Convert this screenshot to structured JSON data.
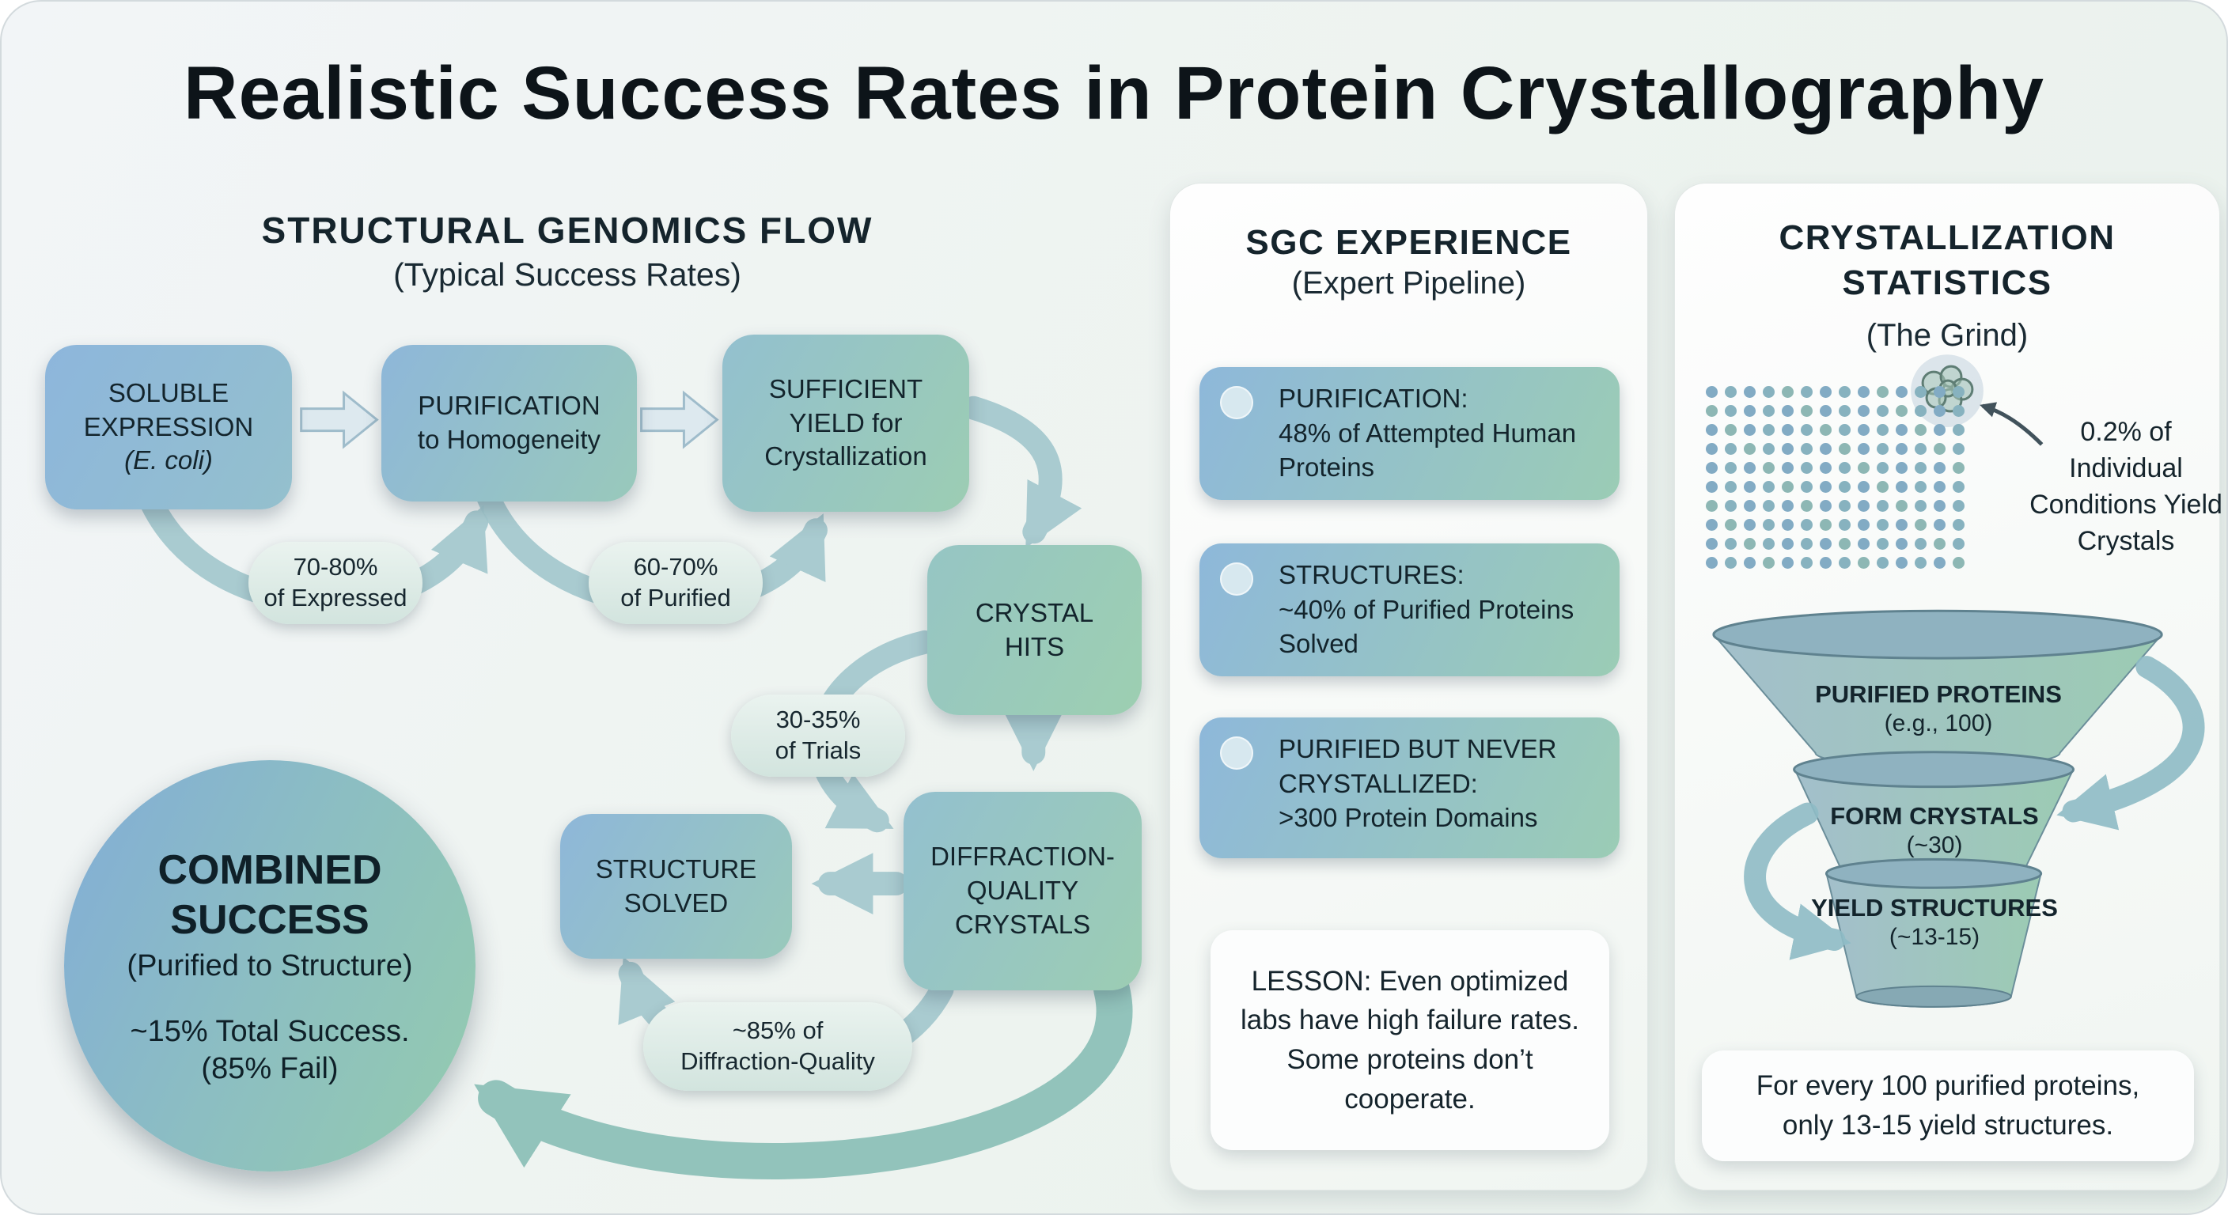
{
  "title": "Realistic Success Rates in Protein Crystallography",
  "flow": {
    "heading": "STRUCTURAL GENOMICS FLOW",
    "subheading": "(Typical Success Rates)",
    "nodes": {
      "soluble": {
        "title": "SOLUBLE EXPRESSION",
        "subtitle": "(E. coli)"
      },
      "purification": {
        "title": "PURIFICATION",
        "subtitle": "to Homogeneity"
      },
      "yield": {
        "title": "SUFFICIENT YIELD for Crystallization"
      },
      "hits": {
        "title": "CRYSTAL HITS"
      },
      "diffraction": {
        "title": "DIFFRACTION-QUALITY CRYSTALS"
      },
      "solved": {
        "title": "STRUCTURE SOLVED"
      }
    },
    "rates": {
      "expressed": {
        "value": "70-80%",
        "label": "of Expressed"
      },
      "purified": {
        "value": "60-70%",
        "label": "of Purified"
      },
      "trials": {
        "value": "30-35%",
        "label": "of Trials"
      },
      "diffraction_quality": {
        "value": "~85% of",
        "label": "Diffraction-Quality"
      }
    },
    "combined": {
      "title": "COMBINED SUCCESS",
      "subtitle": "(Purified to Structure)",
      "result": "~15% Total Success.",
      "fail": "(85% Fail)"
    }
  },
  "sgc": {
    "heading": "SGC EXPERIENCE",
    "subheading": "(Expert Pipeline)",
    "items": [
      {
        "title": "PURIFICATION:",
        "body": "48% of Attempted Human Proteins"
      },
      {
        "title": "STRUCTURES:",
        "body": "~40% of Purified Proteins Solved"
      },
      {
        "title": "PURIFIED BUT NEVER CRYSTALLIZED:",
        "body": ">300 Protein Domains"
      }
    ],
    "lesson": "LESSON: Even optimized labs have high failure rates. Some proteins don’t cooperate."
  },
  "stats": {
    "heading": "CRYSTALLIZATION STATISTICS",
    "subheading": "(The Grind)",
    "dot_grid": {
      "rows": 10,
      "cols": 14
    },
    "annotation": "0.2% of Individual Conditions Yield Crystals",
    "funnel": [
      {
        "title": "PURIFIED PROTEINS",
        "subtitle": "(e.g., 100)"
      },
      {
        "title": "FORM CRYSTALS",
        "subtitle": "(~30)"
      },
      {
        "title": "YIELD STRUCTURES",
        "subtitle": "(~13-15)"
      }
    ],
    "footer": "For every 100 purified proteins, only 13-15 yield structures."
  },
  "colors": {
    "box_blue": "#8fb7dc",
    "box_green": "#9bcbb4",
    "arrow_teal": "#a2c7cd",
    "arrow_big": "#8ec1b9",
    "text_dark": "#15242c"
  }
}
